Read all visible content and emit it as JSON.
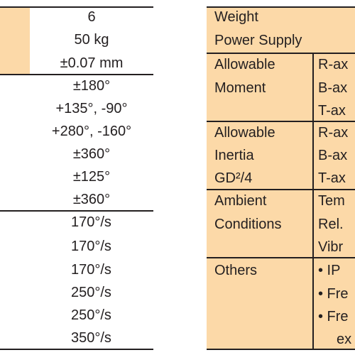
{
  "left_table": {
    "values": [
      "6",
      "50 kg",
      "±0.07 mm",
      "±180°",
      "+135°, -90°",
      "+280°, -160°",
      "±360°",
      "±125°",
      "±360°",
      "170°/s",
      "170°/s",
      "170°/s",
      "250°/s",
      "250°/s",
      "350°/s"
    ]
  },
  "right_table": {
    "labels": [
      "Weight",
      "Power Supply",
      "Allowable",
      "Moment",
      "Allowable",
      "Inertia",
      "GD²/4",
      "Ambient",
      "Conditions",
      "Others"
    ],
    "details": [
      "R-ax",
      "B-ax",
      "T-ax",
      "R-ax",
      "B-ax",
      "T-ax",
      "Tem",
      "Rel.",
      "Vibr",
      "• IP",
      "• Fre",
      "• Fre",
      "ex"
    ]
  },
  "colors": {
    "fill": "#fcd9a8",
    "text": "#231f20",
    "rule": "#231f20"
  }
}
